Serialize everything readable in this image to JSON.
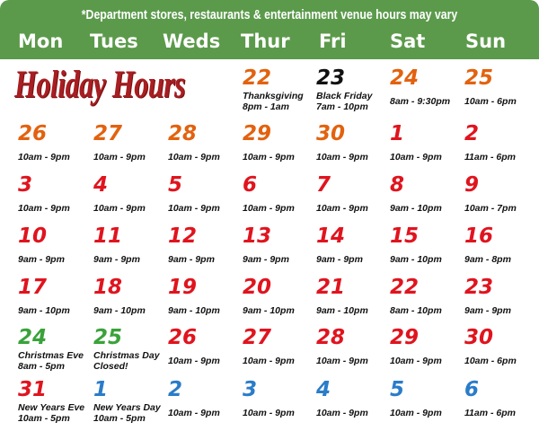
{
  "header": {
    "note": "*Department stores, restaurants & entertainment venue hours may vary",
    "days": [
      "Mon",
      "Tues",
      "Weds",
      "Thur",
      "Fri",
      "Sat",
      "Sun"
    ],
    "color": "#5b9a4b"
  },
  "logo": {
    "text": "Holiday Hours",
    "color": "#a81e22"
  },
  "colors": {
    "orange": "#e2620f",
    "black": "#111111",
    "red": "#e0141e",
    "green": "#3aa23a",
    "blue": "#2a7cc9"
  },
  "weeks": [
    [
      null,
      null,
      null,
      {
        "day": "22",
        "color": "orange",
        "label": "Thanksgiving",
        "hours": "8pm - 1am"
      },
      {
        "day": "23",
        "color": "black",
        "label": "Black Friday",
        "hours": "7am - 10pm"
      },
      {
        "day": "24",
        "color": "orange",
        "hours": "8am - 9:30pm"
      },
      {
        "day": "25",
        "color": "orange",
        "hours": "10am - 6pm"
      }
    ],
    [
      {
        "day": "26",
        "color": "orange",
        "hours": "10am - 9pm"
      },
      {
        "day": "27",
        "color": "orange",
        "hours": "10am - 9pm"
      },
      {
        "day": "28",
        "color": "orange",
        "hours": "10am - 9pm"
      },
      {
        "day": "29",
        "color": "orange",
        "hours": "10am - 9pm"
      },
      {
        "day": "30",
        "color": "orange",
        "hours": "10am - 9pm"
      },
      {
        "day": "1",
        "color": "red",
        "hours": "10am - 9pm"
      },
      {
        "day": "2",
        "color": "red",
        "hours": "11am - 6pm"
      }
    ],
    [
      {
        "day": "3",
        "color": "red",
        "hours": "10am - 9pm"
      },
      {
        "day": "4",
        "color": "red",
        "hours": "10am - 9pm"
      },
      {
        "day": "5",
        "color": "red",
        "hours": "10am - 9pm"
      },
      {
        "day": "6",
        "color": "red",
        "hours": "10am - 9pm"
      },
      {
        "day": "7",
        "color": "red",
        "hours": "10am - 9pm"
      },
      {
        "day": "8",
        "color": "red",
        "hours": "9am - 10pm"
      },
      {
        "day": "9",
        "color": "red",
        "hours": "10am - 7pm"
      }
    ],
    [
      {
        "day": "10",
        "color": "red",
        "hours": "9am - 9pm"
      },
      {
        "day": "11",
        "color": "red",
        "hours": "9am - 9pm"
      },
      {
        "day": "12",
        "color": "red",
        "hours": "9am - 9pm"
      },
      {
        "day": "13",
        "color": "red",
        "hours": "9am - 9pm"
      },
      {
        "day": "14",
        "color": "red",
        "hours": "9am - 9pm"
      },
      {
        "day": "15",
        "color": "red",
        "hours": "9am - 10pm"
      },
      {
        "day": "16",
        "color": "red",
        "hours": "9am - 8pm"
      }
    ],
    [
      {
        "day": "17",
        "color": "red",
        "hours": "9am - 10pm"
      },
      {
        "day": "18",
        "color": "red",
        "hours": "9am - 10pm"
      },
      {
        "day": "19",
        "color": "red",
        "hours": "9am - 10pm"
      },
      {
        "day": "20",
        "color": "red",
        "hours": "9am - 10pm"
      },
      {
        "day": "21",
        "color": "red",
        "hours": "9am - 10pm"
      },
      {
        "day": "22",
        "color": "red",
        "hours": "8am - 10pm"
      },
      {
        "day": "23",
        "color": "red",
        "hours": "9am - 9pm"
      }
    ],
    [
      {
        "day": "24",
        "color": "green",
        "label": "Christmas Eve",
        "hours": "8am - 5pm"
      },
      {
        "day": "25",
        "color": "green",
        "label": "Christmas Day",
        "hours": "Closed!"
      },
      {
        "day": "26",
        "color": "red",
        "hours": "10am - 9pm"
      },
      {
        "day": "27",
        "color": "red",
        "hours": "10am - 9pm"
      },
      {
        "day": "28",
        "color": "red",
        "hours": "10am - 9pm"
      },
      {
        "day": "29",
        "color": "red",
        "hours": "10am - 9pm"
      },
      {
        "day": "30",
        "color": "red",
        "hours": "10am - 6pm"
      }
    ],
    [
      {
        "day": "31",
        "color": "red",
        "label": "New Years Eve",
        "hours": "10am - 5pm"
      },
      {
        "day": "1",
        "color": "blue",
        "label": "New Years Day",
        "hours": "10am - 5pm"
      },
      {
        "day": "2",
        "color": "blue",
        "hours": "10am - 9pm"
      },
      {
        "day": "3",
        "color": "blue",
        "hours": "10am - 9pm"
      },
      {
        "day": "4",
        "color": "blue",
        "hours": "10am - 9pm"
      },
      {
        "day": "5",
        "color": "blue",
        "hours": "10am - 9pm"
      },
      {
        "day": "6",
        "color": "blue",
        "hours": "11am - 6pm"
      }
    ]
  ]
}
